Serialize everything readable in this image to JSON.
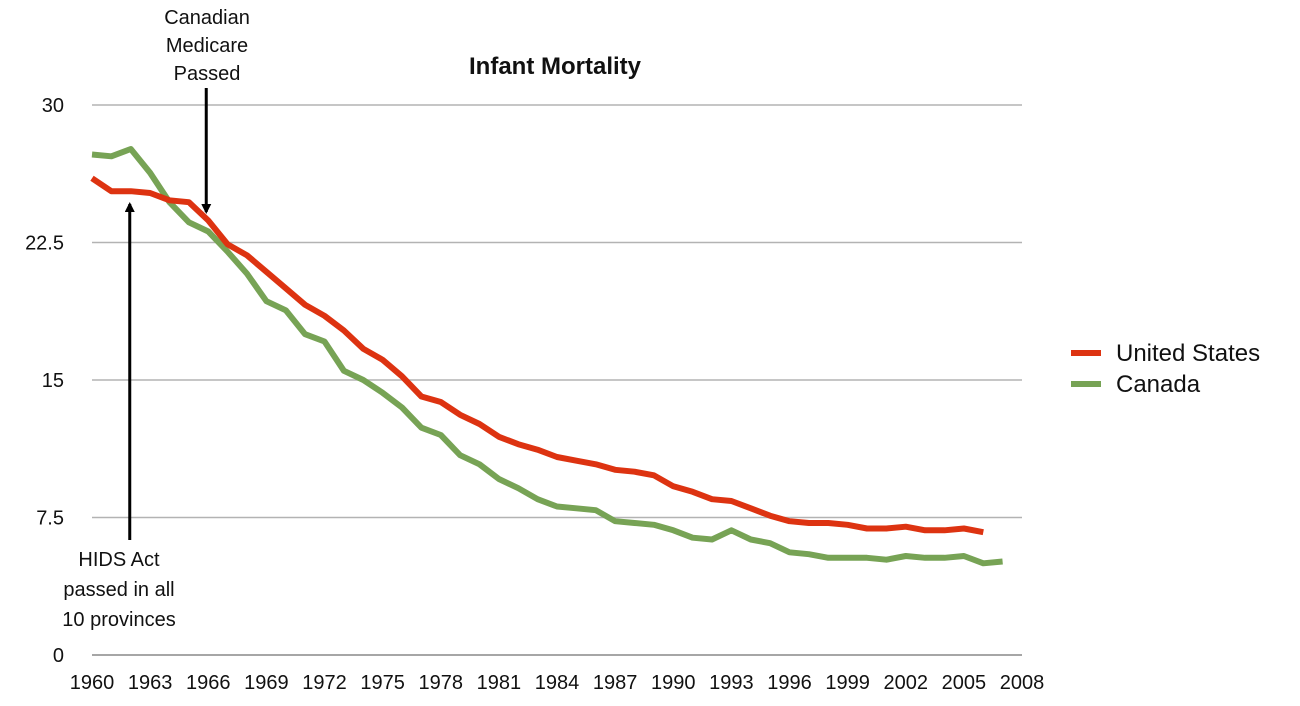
{
  "chart_data": {
    "type": "line",
    "title": "Infant Mortality",
    "xlabel": "",
    "ylabel": "",
    "ylim": [
      0,
      30
    ],
    "yticks": [
      "0",
      "7.5",
      "15",
      "22.5",
      "30"
    ],
    "xlim": [
      1960,
      2008
    ],
    "xticks": [
      "1960",
      "1963",
      "1966",
      "1969",
      "1972",
      "1975",
      "1978",
      "1981",
      "1984",
      "1987",
      "1990",
      "1993",
      "1996",
      "1999",
      "2002",
      "2005",
      "2008"
    ],
    "grid": true,
    "legend_position": "right",
    "series": [
      {
        "name": "United States",
        "color": "#dd3311",
        "x": [
          1960,
          1961,
          1962,
          1963,
          1964,
          1965,
          1966,
          1967,
          1968,
          1969,
          1970,
          1971,
          1972,
          1973,
          1974,
          1975,
          1976,
          1977,
          1978,
          1979,
          1980,
          1981,
          1982,
          1983,
          1984,
          1985,
          1986,
          1987,
          1988,
          1989,
          1990,
          1991,
          1992,
          1993,
          1994,
          1995,
          1996,
          1997,
          1998,
          1999,
          2000,
          2001,
          2002,
          2003,
          2004,
          2005,
          2006
        ],
        "y": [
          26.0,
          25.3,
          25.3,
          25.2,
          24.8,
          24.7,
          23.7,
          22.4,
          21.8,
          20.9,
          20.0,
          19.1,
          18.5,
          17.7,
          16.7,
          16.1,
          15.2,
          14.1,
          13.8,
          13.1,
          12.6,
          11.9,
          11.5,
          11.2,
          10.8,
          10.6,
          10.4,
          10.1,
          10.0,
          9.8,
          9.2,
          8.9,
          8.5,
          8.4,
          8.0,
          7.6,
          7.3,
          7.2,
          7.2,
          7.1,
          6.9,
          6.9,
          7.0,
          6.8,
          6.8,
          6.9,
          6.7
        ]
      },
      {
        "name": "Canada",
        "color": "#77a355",
        "x": [
          1960,
          1961,
          1962,
          1963,
          1964,
          1965,
          1966,
          1967,
          1968,
          1969,
          1970,
          1971,
          1972,
          1973,
          1974,
          1975,
          1976,
          1977,
          1978,
          1979,
          1980,
          1981,
          1982,
          1983,
          1984,
          1985,
          1986,
          1987,
          1988,
          1989,
          1990,
          1991,
          1992,
          1993,
          1994,
          1995,
          1996,
          1997,
          1998,
          1999,
          2000,
          2001,
          2002,
          2003,
          2004,
          2005,
          2006,
          2007
        ],
        "y": [
          27.3,
          27.2,
          27.6,
          26.3,
          24.7,
          23.6,
          23.1,
          22.0,
          20.8,
          19.3,
          18.8,
          17.5,
          17.1,
          15.5,
          15.0,
          14.3,
          13.5,
          12.4,
          12.0,
          10.9,
          10.4,
          9.6,
          9.1,
          8.5,
          8.1,
          8.0,
          7.9,
          7.3,
          7.2,
          7.1,
          6.8,
          6.4,
          6.3,
          6.8,
          6.3,
          6.1,
          5.6,
          5.5,
          5.3,
          5.3,
          5.3,
          5.2,
          5.4,
          5.3,
          5.3,
          5.4,
          5.0,
          5.1
        ]
      }
    ],
    "annotations": [
      {
        "id": "medicare",
        "lines": [
          "Canadian",
          "Medicare",
          "Passed"
        ],
        "x": 1966
      },
      {
        "id": "hids",
        "lines": [
          "HIDS Act",
          "passed in all",
          "10 provinces"
        ],
        "x": 1962
      }
    ]
  }
}
